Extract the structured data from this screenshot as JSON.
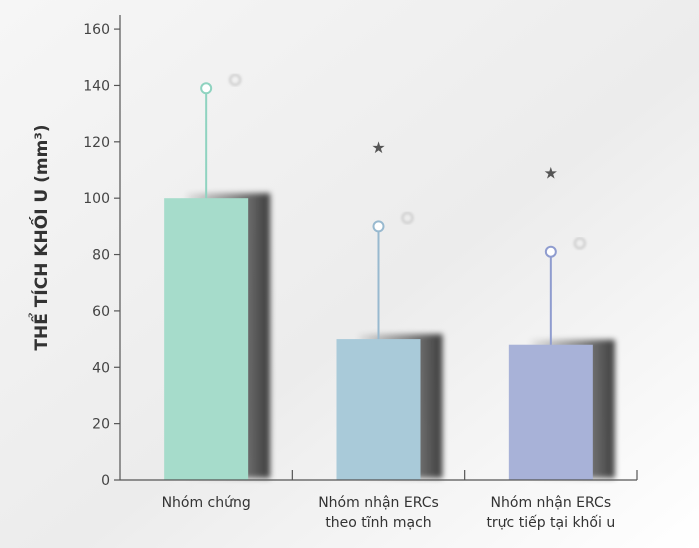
{
  "chart_data": {
    "type": "bar",
    "title": "",
    "xlabel": "",
    "ylabel": "THỂ TÍCH KHỐI U (mm³)",
    "ylim": [
      0,
      165
    ],
    "yticks": [
      0,
      20,
      40,
      60,
      80,
      100,
      120,
      140,
      160
    ],
    "categories": [
      [
        "Nhóm chứng"
      ],
      [
        "Nhóm nhận ERCs",
        "theo tĩnh mạch"
      ],
      [
        "Nhóm nhận ERCs",
        "trực tiếp tại khối u"
      ]
    ],
    "values": [
      100,
      50,
      48
    ],
    "error_upper": [
      139,
      90,
      81
    ],
    "significance": [
      "",
      "★",
      "★"
    ],
    "colors": [
      "#a6dccb",
      "#a9cad9",
      "#a8b2d8"
    ],
    "marker_colors": [
      "#8fd3c0",
      "#98b9cf",
      "#8f9ccf"
    ],
    "grid": false,
    "legend": "none"
  }
}
